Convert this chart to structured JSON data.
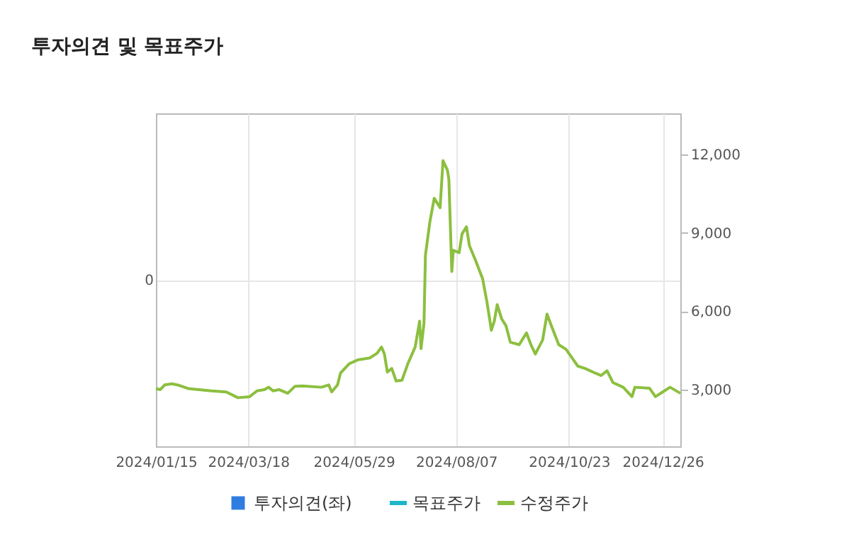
{
  "chart_data": {
    "type": "line",
    "title": "투자의견 및 목표주가",
    "xlim": [
      "2024-01-15",
      "2025-01-07"
    ],
    "xticks": [
      {
        "value": "2024-01-15",
        "label": "2024/01/15"
      },
      {
        "value": "2024-03-18",
        "label": "2024/03/18"
      },
      {
        "value": "2024-05-29",
        "label": "2024/05/29"
      },
      {
        "value": "2024-08-07",
        "label": "2024/08/07"
      },
      {
        "value": "2024-10-23",
        "label": "2024/10/23"
      },
      {
        "value": "2024-12-26",
        "label": "2024/12/26"
      }
    ],
    "annotations": [
      "0"
    ],
    "y2lim": [
      830,
      13570
    ],
    "y2ticks": [
      {
        "value": 3000,
        "label": "3,000"
      },
      {
        "value": 6000,
        "label": "6,000"
      },
      {
        "value": 9000,
        "label": "9,000"
      },
      {
        "value": 12000,
        "label": "12,000"
      }
    ],
    "grid": true,
    "legend": "bottom",
    "series": [
      {
        "name": "투자의견(좌)",
        "type": "bar",
        "color": "#2f7de1"
      },
      {
        "name": "목표주가",
        "type": "line",
        "color": "#1fb5c9"
      },
      {
        "name": "수정주가",
        "color": "#8cbf3f",
        "axis": "y2",
        "x": [
          "2024-01-15",
          "2024-01-18",
          "2024-01-21",
          "2024-01-26",
          "2024-01-31",
          "2024-02-06",
          "2024-02-22",
          "2024-03-03",
          "2024-03-11",
          "2024-03-19",
          "2024-03-24",
          "2024-03-29",
          "2024-04-01",
          "2024-04-04",
          "2024-04-08",
          "2024-04-14",
          "2024-04-19",
          "2024-04-24",
          "2024-05-07",
          "2024-05-12",
          "2024-05-14",
          "2024-05-18",
          "2024-05-20",
          "2024-05-26",
          "2024-06-01",
          "2024-06-09",
          "2024-06-14",
          "2024-06-17",
          "2024-06-19",
          "2024-06-21",
          "2024-06-24",
          "2024-06-27",
          "2024-07-01",
          "2024-07-05",
          "2024-07-10",
          "2024-07-13",
          "2024-07-14",
          "2024-07-16",
          "2024-07-17",
          "2024-07-20",
          "2024-07-23",
          "2024-07-27",
          "2024-07-29",
          "2024-08-01",
          "2024-08-02",
          "2024-08-04",
          "2024-08-05",
          "2024-08-09",
          "2024-08-11",
          "2024-08-14",
          "2024-08-16",
          "2024-08-20",
          "2024-08-25",
          "2024-08-28",
          "2024-08-31",
          "2024-09-02",
          "2024-09-04",
          "2024-09-07",
          "2024-09-10",
          "2024-09-13",
          "2024-09-19",
          "2024-09-24",
          "2024-09-27",
          "2024-09-30",
          "2024-10-05",
          "2024-10-08",
          "2024-10-11",
          "2024-10-16",
          "2024-10-21",
          "2024-10-29",
          "2024-11-03",
          "2024-11-10",
          "2024-11-14",
          "2024-11-18",
          "2024-11-22",
          "2024-11-29",
          "2024-12-05",
          "2024-12-07",
          "2024-12-17",
          "2024-12-21",
          "2024-12-26",
          "2024-12-31",
          "2025-01-07"
        ],
        "values": [
          3040,
          3000,
          3180,
          3220,
          3160,
          3040,
          2950,
          2910,
          2690,
          2730,
          2950,
          3000,
          3090,
          2950,
          3000,
          2860,
          3130,
          3140,
          3090,
          3180,
          2910,
          3180,
          3630,
          3990,
          4140,
          4210,
          4390,
          4630,
          4360,
          3670,
          3810,
          3330,
          3360,
          3990,
          4630,
          5620,
          4570,
          5530,
          8150,
          9410,
          10320,
          9960,
          11760,
          11400,
          11040,
          7520,
          8330,
          8240,
          8960,
          9230,
          8510,
          7970,
          7250,
          6350,
          5270,
          5620,
          6250,
          5710,
          5440,
          4810,
          4720,
          5170,
          4720,
          4360,
          4900,
          5890,
          5440,
          4720,
          4540,
          3900,
          3810,
          3630,
          3540,
          3720,
          3270,
          3090,
          2730,
          3090,
          3050,
          2730,
          2910,
          3090,
          2860
        ]
      }
    ]
  }
}
